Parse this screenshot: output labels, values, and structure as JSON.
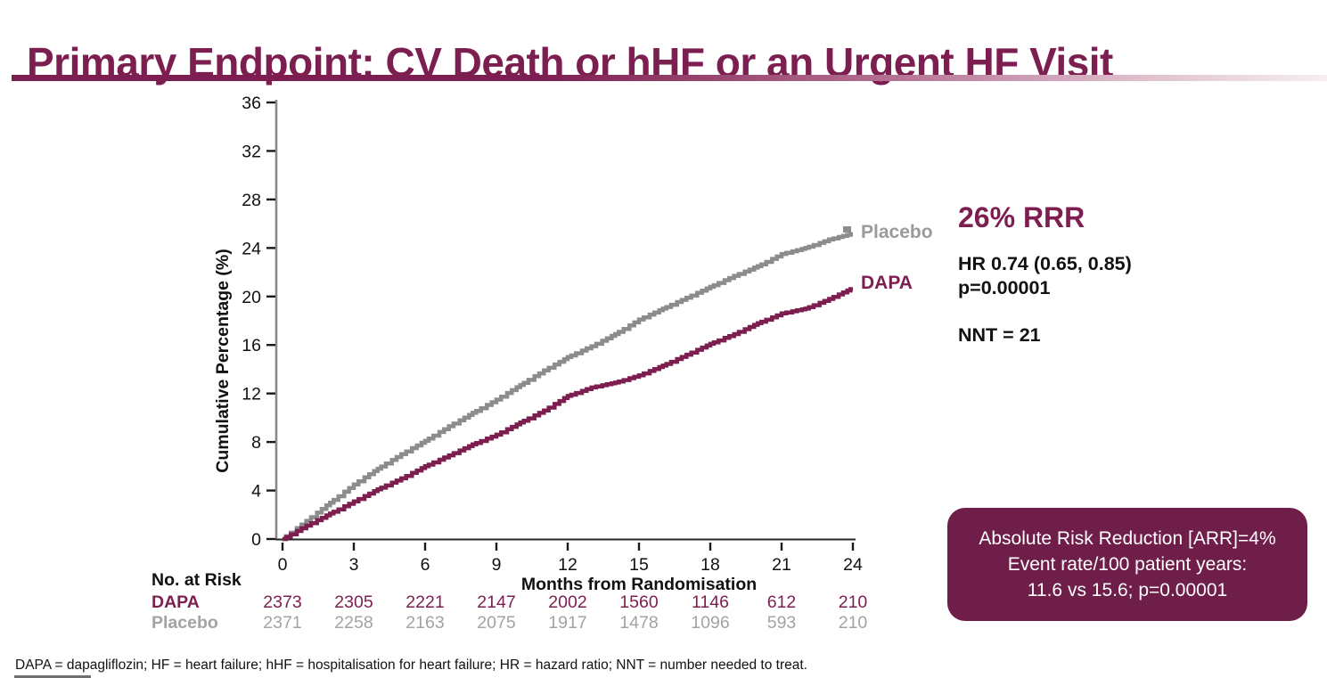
{
  "slide": {
    "title": "Primary Endpoint: CV Death or hHF or an Urgent HF Visit"
  },
  "colors": {
    "brand": "#7D1E50",
    "placebo_curve": "#8C8C8C",
    "placebo_text": "#9B9B9B",
    "box_bg": "#6F1D49",
    "axis": "#8A8A8A",
    "tick": "#1A1A1A"
  },
  "chart_data": {
    "type": "line",
    "subtype": "kaplan-meier-step",
    "title": "",
    "xlabel": "Months from Randomisation",
    "ylabel": "Cumulative Percentage (%)",
    "xlim": [
      0,
      24
    ],
    "ylim": [
      0,
      36
    ],
    "xticks": [
      0,
      3,
      6,
      9,
      12,
      15,
      18,
      21,
      24
    ],
    "yticks": [
      0,
      4,
      8,
      12,
      16,
      20,
      24,
      28,
      32,
      36
    ],
    "grid": false,
    "legend_position": "end-of-line",
    "months": [
      0,
      1,
      2,
      3,
      4,
      5,
      6,
      7,
      8,
      9,
      10,
      11,
      12,
      13,
      14,
      15,
      16,
      17,
      18,
      19,
      20,
      21,
      22,
      23,
      24
    ],
    "series": [
      {
        "name": "Placebo",
        "color": "#8C8C8C",
        "values": [
          0,
          1.5,
          3.0,
          4.5,
          5.8,
          7.0,
          8.1,
          9.3,
          10.4,
          11.5,
          12.7,
          13.9,
          15.0,
          15.9,
          16.9,
          18.1,
          19.0,
          19.9,
          20.8,
          21.7,
          22.5,
          23.5,
          24.0,
          24.7,
          25.2
        ]
      },
      {
        "name": "DAPA",
        "color": "#7D1E50",
        "values": [
          0,
          1.1,
          2.1,
          3.1,
          4.1,
          5.0,
          6.0,
          6.9,
          7.8,
          8.6,
          9.6,
          10.6,
          11.8,
          12.5,
          12.9,
          13.5,
          14.3,
          15.2,
          16.1,
          16.9,
          17.8,
          18.6,
          19.0,
          19.8,
          20.7
        ]
      }
    ],
    "no_at_risk": {
      "label": "No. at Risk",
      "rows": [
        {
          "name": "DAPA",
          "color": "#7D1E50",
          "values": [
            "2373",
            "2305",
            "2221",
            "2147",
            "2002",
            "1560",
            "1146",
            "612",
            "210"
          ]
        },
        {
          "name": "Placebo",
          "color": "#A3A3A3",
          "values": [
            "2371",
            "2258",
            "2163",
            "2075",
            "1917",
            "1478",
            "1096",
            "593",
            "210"
          ]
        }
      ]
    }
  },
  "stats": {
    "rrr": "26% RRR",
    "hr": "HR 0.74 (0.65, 0.85)",
    "p": "p=0.00001",
    "nnt": "NNT = 21"
  },
  "arr_box": {
    "line1": "Absolute Risk Reduction [ARR]=4%",
    "line2": "Event rate/100 patient years:",
    "line3": "11.6 vs 15.6; p=0.00001"
  },
  "footnote": "DAPA = dapagliflozin; HF = heart failure; hHF = hospitalisation for heart failure; HR = hazard ratio; NNT = number needed to treat."
}
